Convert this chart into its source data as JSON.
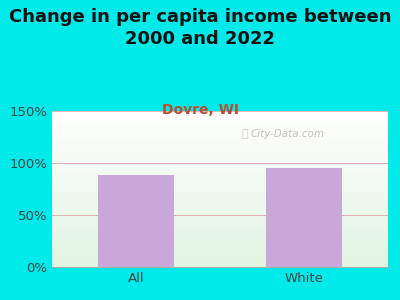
{
  "title": "Change in per capita income between\n2000 and 2022",
  "subtitle": "Dovre, WI",
  "categories": [
    "All",
    "White"
  ],
  "values": [
    88,
    95
  ],
  "bar_color": "#c8a8d8",
  "ylim": [
    0,
    150
  ],
  "yticks": [
    0,
    50,
    100,
    150
  ],
  "ytick_labels": [
    "0%",
    "50%",
    "100%",
    "150%"
  ],
  "title_fontsize": 13,
  "subtitle_fontsize": 10,
  "tick_fontsize": 9.5,
  "bg_outer": "#00eaea",
  "watermark": "City-Data.com",
  "grid_color": "#e0b0b0",
  "bar_width": 0.45,
  "subtitle_color": "#b85030"
}
